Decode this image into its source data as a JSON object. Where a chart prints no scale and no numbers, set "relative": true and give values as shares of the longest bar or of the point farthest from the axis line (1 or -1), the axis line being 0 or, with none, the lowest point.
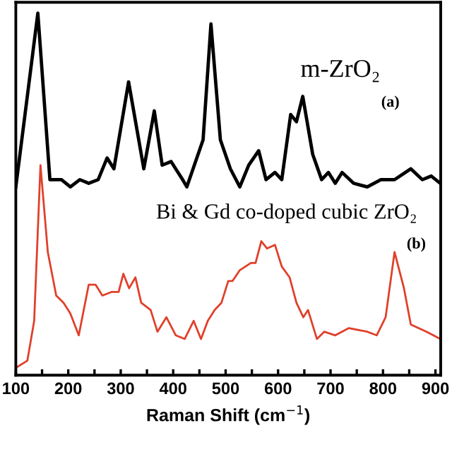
{
  "chart_data": {
    "type": "line",
    "relative": true,
    "xlabel": "Raman Shift (cm$^{−1}$)",
    "xlim": [
      100,
      910
    ],
    "xticks": [
      100,
      {
        "value": 150,
        "label": null
      },
      200,
      {
        "value": 250,
        "label": null
      },
      300,
      {
        "value": 350,
        "label": null
      },
      400,
      {
        "value": 450,
        "label": null
      },
      500,
      {
        "value": 550,
        "label": null
      },
      600,
      {
        "value": 650,
        "label": null
      },
      700,
      {
        "value": 750,
        "label": null
      },
      800,
      {
        "value": 850,
        "label": null
      },
      900
    ],
    "tick_labels": "x",
    "grid": false,
    "marker": "none",
    "line_style": "solid",
    "annotations": [
      "m-ZrO₂",
      "(a)",
      "Bi & Gd co-doped cubic ZrO₂",
      "(b)"
    ],
    "series": [
      {
        "color": "#000000",
        "x": [
          100,
          142,
          165,
          187,
          204,
          222,
          239,
          257,
          274,
          287,
          315,
          344,
          364,
          379,
          396,
          418,
          426,
          457,
          472,
          490,
          509,
          527,
          544,
          563,
          577,
          594,
          607,
          624,
          635,
          647,
          666,
          683,
          696,
          709,
          722,
          744,
          770,
          796,
          822,
          853,
          875,
          892,
          909
        ],
        "values": [
          0.52,
          1.0,
          0.54,
          0.54,
          0.52,
          0.54,
          0.53,
          0.54,
          0.6,
          0.57,
          0.81,
          0.57,
          0.73,
          0.58,
          0.59,
          0.54,
          0.52,
          0.65,
          0.97,
          0.65,
          0.57,
          0.52,
          0.58,
          0.62,
          0.54,
          0.56,
          0.54,
          0.72,
          0.7,
          0.77,
          0.61,
          0.54,
          0.56,
          0.53,
          0.56,
          0.53,
          0.52,
          0.54,
          0.54,
          0.57,
          0.54,
          0.55,
          0.53
        ]
      },
      {
        "color": "#e0402a",
        "x": [
          100,
          122,
          135,
          147,
          161,
          177,
          191,
          204,
          220,
          239,
          252,
          265,
          283,
          296,
          305,
          316,
          328,
          339,
          357,
          370,
          387,
          405,
          422,
          439,
          453,
          466,
          479,
          492,
          505,
          513,
          527,
          548,
          557,
          568,
          579,
          594,
          607,
          622,
          635,
          648,
          657,
          674,
          688,
          709,
          735,
          770,
          788,
          805,
          822,
          840,
          853,
          883,
          896,
          909
        ],
        "values": [
          0.02,
          0.04,
          0.15,
          0.58,
          0.34,
          0.22,
          0.2,
          0.17,
          0.11,
          0.25,
          0.25,
          0.22,
          0.23,
          0.23,
          0.28,
          0.24,
          0.27,
          0.2,
          0.18,
          0.12,
          0.16,
          0.11,
          0.1,
          0.15,
          0.1,
          0.15,
          0.18,
          0.2,
          0.26,
          0.26,
          0.29,
          0.31,
          0.31,
          0.37,
          0.35,
          0.36,
          0.3,
          0.27,
          0.2,
          0.16,
          0.18,
          0.1,
          0.12,
          0.11,
          0.13,
          0.12,
          0.11,
          0.16,
          0.34,
          0.24,
          0.14,
          0.12,
          0.11,
          0.1
        ]
      }
    ]
  }
}
